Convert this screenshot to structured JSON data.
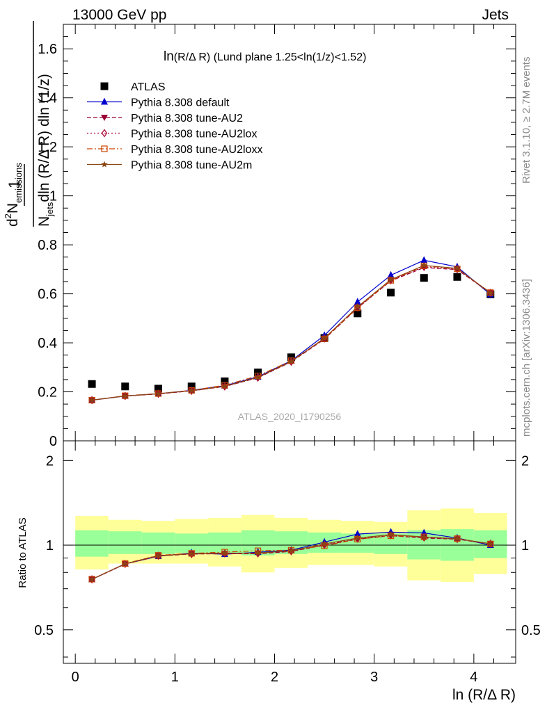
{
  "header": {
    "left": "13000 GeV pp",
    "right": "Jets"
  },
  "side_labels": {
    "rivet": "Rivet 3.1.10, ≥ 2.7M events",
    "mcplots": "mcplots.cern.ch [arXiv:1306.3436]"
  },
  "chart_data": [
    {
      "type": "scatter",
      "title": "ln(R/Δ R) (Lund plane 1.25<ln(1/z)<1.52)",
      "title_parts": {
        "ln": "ln",
        "main": "(R/Δ R) (Lund plane 1.25<ln(1/z)<1.52)"
      },
      "watermark": "ATLAS_2020_I1790256",
      "ylabel": {
        "one": "1",
        "jets": "N",
        "jets_sub": "jets",
        "jets_rest": "dln (R/Δ R) dln (1/z)",
        "num": "d",
        "num_sup": "2",
        "num_rest": "N",
        "num_sub": "emissions",
        "den": "dln (R/Δ R) dln (1/z)"
      },
      "xlim": [
        -0.12,
        4.42
      ],
      "ylim": [
        0,
        1.7
      ],
      "y_ticks": [
        0,
        0.2,
        0.4,
        0.6,
        0.8,
        1,
        1.2,
        1.4,
        1.6
      ],
      "y_tick_labels": [
        "0",
        "0.2",
        "0.4",
        "0.6",
        "0.8",
        "1",
        "1.2",
        "1.4",
        "1.6"
      ],
      "x": [
        0.167,
        0.5,
        0.833,
        1.167,
        1.5,
        1.833,
        2.167,
        2.5,
        2.833,
        3.167,
        3.5,
        3.833,
        4.167
      ],
      "series": [
        {
          "name": "ATLAS",
          "color": "#000000",
          "marker": "square",
          "line": "none",
          "values": [
            0.232,
            0.222,
            0.213,
            0.222,
            0.243,
            0.279,
            0.341,
            0.42,
            0.52,
            0.605,
            0.665,
            0.669,
            0.598
          ]
        },
        {
          "name": "Pythia 8.308 default",
          "color": "#0000cc",
          "marker": "triangle-up",
          "line": "solid",
          "values": [
            0.166,
            0.183,
            0.192,
            0.206,
            0.225,
            0.261,
            0.327,
            0.43,
            0.567,
            0.676,
            0.737,
            0.71,
            0.597
          ]
        },
        {
          "name": "Pythia 8.308 tune-AU2",
          "color": "#990033",
          "marker": "triangle-down",
          "line": "dashed",
          "values": [
            0.166,
            0.183,
            0.191,
            0.204,
            0.222,
            0.257,
            0.322,
            0.415,
            0.542,
            0.653,
            0.707,
            0.699,
            0.603
          ]
        },
        {
          "name": "Pythia 8.308 tune-AU2lox",
          "color": "#aa0033",
          "marker": "diamond-open",
          "line": "dotted",
          "values": [
            0.166,
            0.183,
            0.192,
            0.204,
            0.222,
            0.258,
            0.323,
            0.418,
            0.545,
            0.655,
            0.71,
            0.701,
            0.604
          ]
        },
        {
          "name": "Pythia 8.308 tune-AU2loxx",
          "color": "#cc4400",
          "marker": "square-open",
          "line": "dashdot",
          "values": [
            0.166,
            0.184,
            0.193,
            0.206,
            0.227,
            0.265,
            0.327,
            0.416,
            0.543,
            0.655,
            0.714,
            0.702,
            0.605
          ]
        },
        {
          "name": "Pythia 8.308 tune-AU2m",
          "color": "#8b4513",
          "marker": "star",
          "line": "solid",
          "values": [
            0.166,
            0.183,
            0.192,
            0.205,
            0.223,
            0.259,
            0.324,
            0.419,
            0.547,
            0.658,
            0.716,
            0.704,
            0.603
          ]
        }
      ]
    },
    {
      "type": "line",
      "ylabel": "Ratio to ATLAS",
      "xlabel": "ln (R/Δ R)",
      "xlim": [
        -0.12,
        4.42
      ],
      "ylim": [
        0.38,
        2.35
      ],
      "y_scale": "log",
      "x_ticks": [
        0,
        1,
        2,
        3,
        4
      ],
      "x_tick_labels": [
        "0",
        "1",
        "2",
        "3",
        "4"
      ],
      "y_ticks": [
        0.5,
        1,
        2
      ],
      "y_tick_labels": [
        "0.5",
        "1",
        "2"
      ],
      "band_edges": [
        0,
        0.333,
        0.667,
        1.0,
        1.333,
        1.667,
        2.0,
        2.333,
        2.667,
        3.0,
        3.333,
        3.667,
        4.0,
        4.333
      ],
      "band_inner": [
        [
          0.91,
          1.13
        ],
        [
          0.93,
          1.12
        ],
        [
          0.93,
          1.11
        ],
        [
          0.94,
          1.1
        ],
        [
          0.93,
          1.11
        ],
        [
          0.92,
          1.13
        ],
        [
          0.93,
          1.12
        ],
        [
          0.94,
          1.11
        ],
        [
          0.94,
          1.1
        ],
        [
          0.93,
          1.1
        ],
        [
          0.89,
          1.13
        ],
        [
          0.88,
          1.14
        ],
        [
          0.9,
          1.13
        ]
      ],
      "band_outer": [
        [
          0.82,
          1.27
        ],
        [
          0.86,
          1.23
        ],
        [
          0.86,
          1.22
        ],
        [
          0.86,
          1.24
        ],
        [
          0.84,
          1.25
        ],
        [
          0.8,
          1.28
        ],
        [
          0.83,
          1.25
        ],
        [
          0.85,
          1.23
        ],
        [
          0.85,
          1.22
        ],
        [
          0.84,
          1.21
        ],
        [
          0.75,
          1.33
        ],
        [
          0.74,
          1.35
        ],
        [
          0.79,
          1.3
        ]
      ],
      "band_colors": {
        "inner": "#99ff99",
        "outer": "#ffff99"
      },
      "x": [
        0.167,
        0.5,
        0.833,
        1.167,
        1.5,
        1.833,
        2.167,
        2.5,
        2.833,
        3.167,
        3.5,
        3.833,
        4.167
      ],
      "series": [
        {
          "name": "Pythia 8.308 default",
          "color": "#0000cc",
          "marker": "triangle-up",
          "line": "solid",
          "values": [
            0.756,
            0.858,
            0.913,
            0.938,
            0.928,
            0.944,
            0.96,
            1.025,
            1.095,
            1.112,
            1.105,
            1.06,
            1.0
          ]
        },
        {
          "name": "Pythia 8.308 tune-AU2",
          "color": "#990033",
          "marker": "triangle-down",
          "line": "dashed",
          "values": [
            0.755,
            0.857,
            0.915,
            0.93,
            0.932,
            0.932,
            0.95,
            1.0,
            1.05,
            1.08,
            1.06,
            1.05,
            1.01
          ]
        },
        {
          "name": "Pythia 8.308 tune-AU2lox",
          "color": "#aa0033",
          "marker": "diamond-open",
          "line": "dotted",
          "values": [
            0.756,
            0.858,
            0.917,
            0.93,
            0.935,
            0.935,
            0.952,
            1.003,
            1.055,
            1.085,
            1.065,
            1.052,
            1.012
          ]
        },
        {
          "name": "Pythia 8.308 tune-AU2loxx",
          "color": "#cc4400",
          "marker": "square-open",
          "line": "dashdot",
          "values": [
            0.757,
            0.86,
            0.92,
            0.935,
            0.945,
            0.955,
            0.96,
            0.995,
            1.05,
            1.08,
            1.07,
            1.055,
            1.01
          ]
        },
        {
          "name": "Pythia 8.308 tune-AU2m",
          "color": "#8b4513",
          "marker": "star",
          "line": "solid",
          "values": [
            0.756,
            0.859,
            0.918,
            0.932,
            0.937,
            0.938,
            0.955,
            1.01,
            1.06,
            1.09,
            1.07,
            1.055,
            1.012
          ]
        }
      ]
    }
  ]
}
